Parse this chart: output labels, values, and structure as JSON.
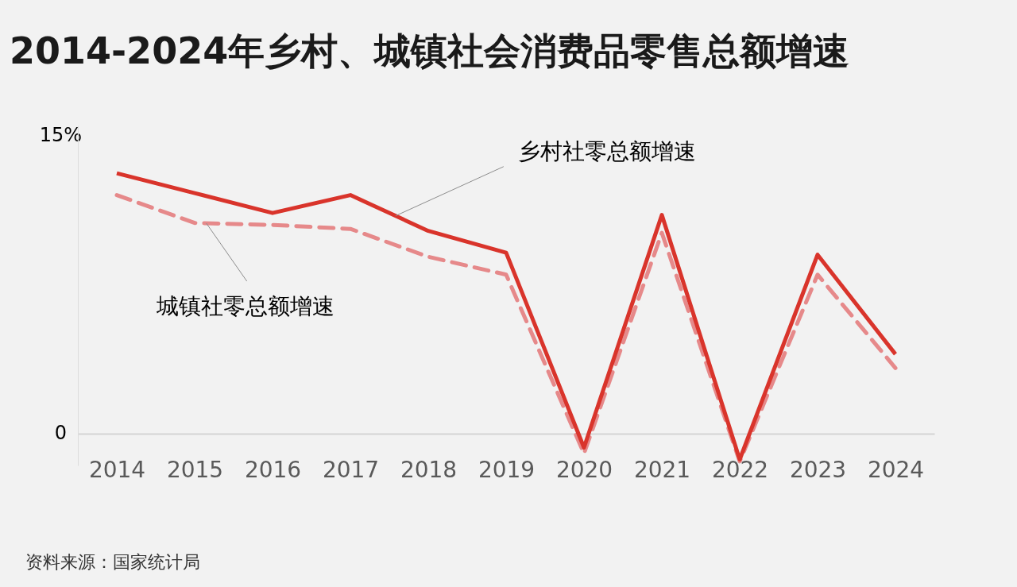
{
  "chart_data": {
    "type": "line",
    "title": "2014-2024年乡村、城镇社会消费品零售总额增速",
    "categories": [
      "2014",
      "2015",
      "2016",
      "2017",
      "2018",
      "2019",
      "2020",
      "2021",
      "2022",
      "2023",
      "2024"
    ],
    "series": [
      {
        "name": "乡村社零总额增速",
        "color": "#d9342b",
        "line_style": "solid",
        "values": [
          13.1,
          12.1,
          11.1,
          12.0,
          10.2,
          9.1,
          -0.7,
          11.0,
          -1.3,
          9.0,
          4.0
        ]
      },
      {
        "name": "城镇社零总额增速",
        "color": "#e6898a",
        "line_style": "dashed",
        "values": [
          12.0,
          10.6,
          10.5,
          10.3,
          8.9,
          8.0,
          -1.0,
          10.1,
          -1.4,
          8.0,
          3.3
        ]
      }
    ],
    "ylim": [
      -1.6,
      15.5
    ],
    "yticks": [
      0,
      {
        "value": 15,
        "label": "15%"
      }
    ],
    "annotations": [
      "资料来源：国家统计局"
    ],
    "grid": false
  }
}
